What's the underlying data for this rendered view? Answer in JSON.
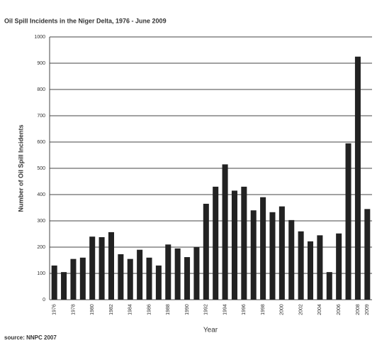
{
  "chart_data": {
    "type": "bar",
    "title": "Oil Spill Incidents in the Niger Delta, 1976 - June 2009",
    "x_label": "Year",
    "y_label": "Number of Oil Spill Incidents",
    "source": "source: NNPC 2007",
    "categories": [
      "1976",
      null,
      "1978",
      null,
      "1980",
      null,
      "1982",
      null,
      "1984",
      null,
      "1986",
      null,
      "1988",
      null,
      "1990",
      null,
      "1992",
      null,
      "1994",
      null,
      "1996",
      null,
      "1998",
      null,
      "2000",
      null,
      "2002",
      null,
      "2004",
      null,
      "2006",
      null,
      "2008",
      "2009"
    ],
    "values": [
      130,
      105,
      155,
      160,
      240,
      238,
      257,
      173,
      155,
      190,
      160,
      130,
      210,
      195,
      162,
      200,
      365,
      430,
      515,
      415,
      430,
      340,
      390,
      333,
      355,
      303,
      260,
      222,
      245,
      105,
      252,
      595,
      925,
      345
    ],
    "color": "#222222",
    "ylim": [
      0,
      1000
    ],
    "yticks": [
      0,
      100,
      200,
      300,
      400,
      500,
      600,
      700,
      800,
      900,
      1000
    ],
    "grid": true
  }
}
